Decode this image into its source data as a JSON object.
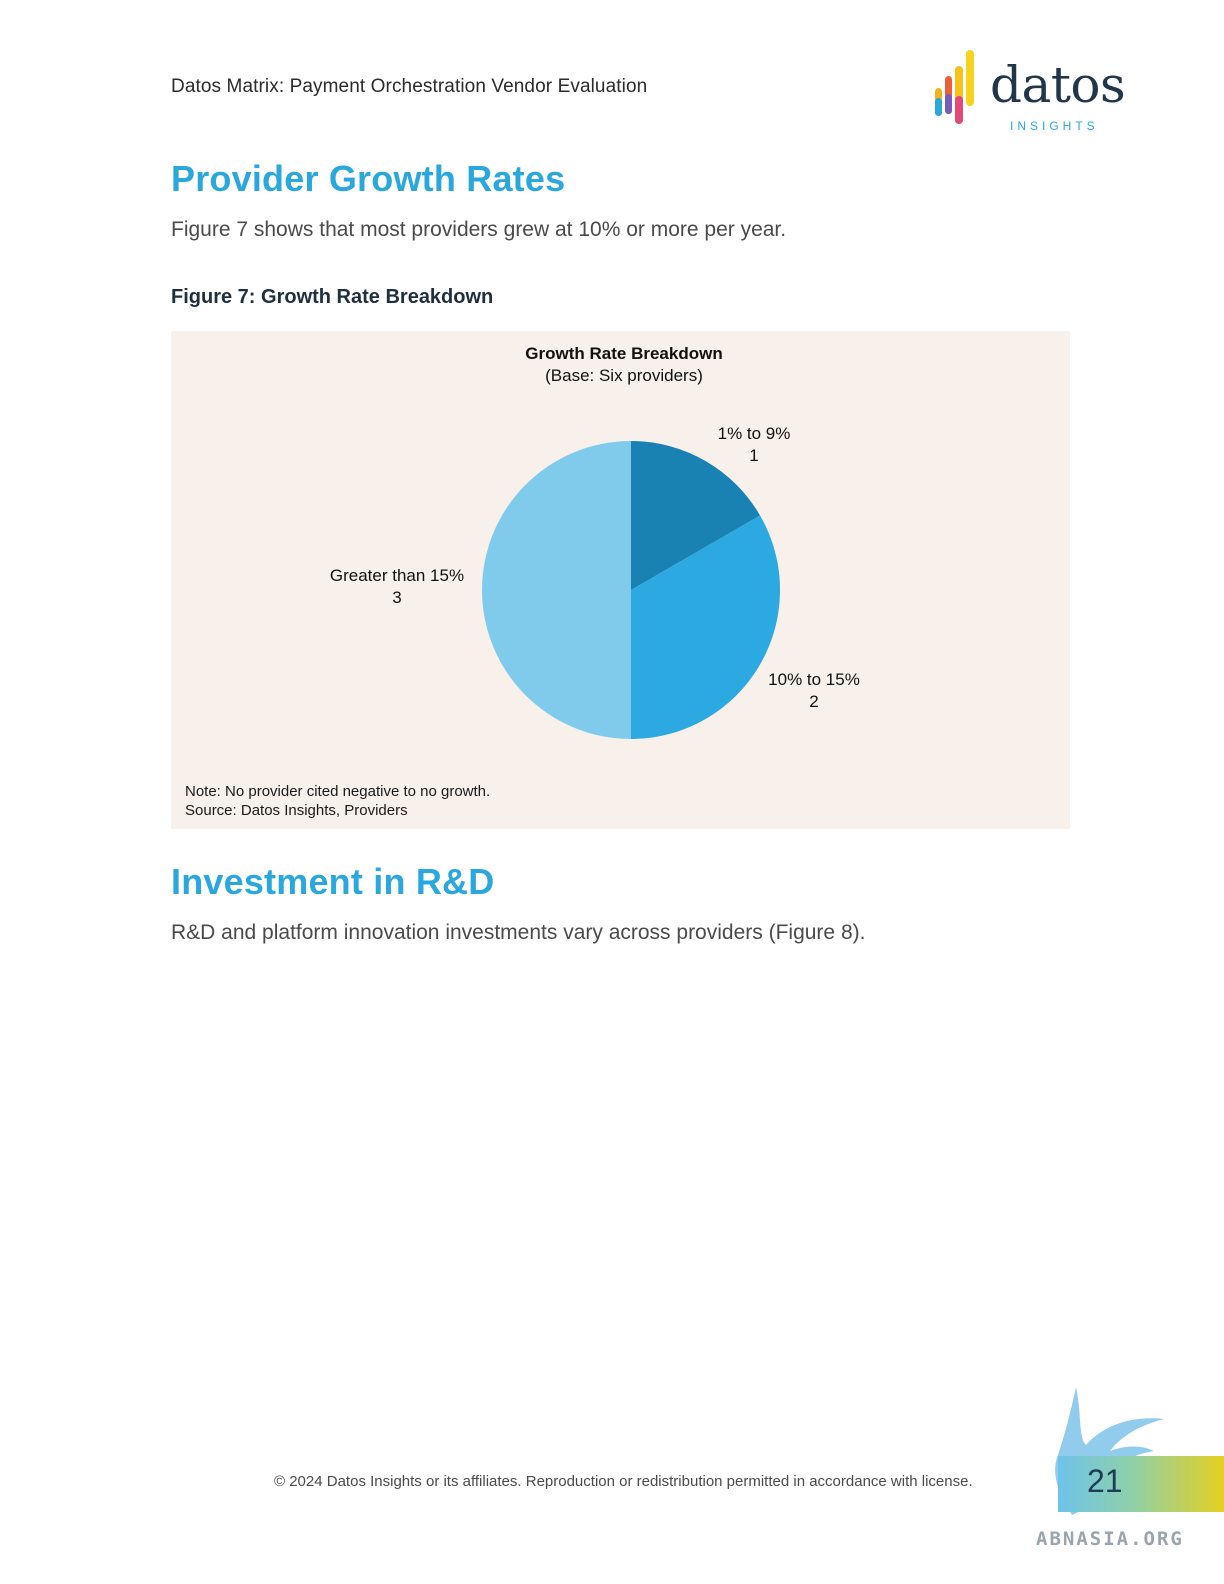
{
  "header": {
    "doc_title": "Datos Matrix: Payment Orchestration Vendor Evaluation",
    "logo_word": "datos",
    "logo_sub": "INSIGHTS"
  },
  "section1": {
    "heading": "Provider Growth Rates",
    "body": "Figure 7 shows that most providers grew at 10% or more per year.",
    "figure_caption": "Figure 7: Growth Rate Breakdown"
  },
  "chart_data": {
    "type": "pie",
    "title": "Growth Rate Breakdown",
    "subtitle": "(Base: Six providers)",
    "slices": [
      {
        "label": "1% to 9%",
        "value": 1,
        "color": "#1a82b2"
      },
      {
        "label": "10% to 15%",
        "value": 2,
        "color": "#2ba9e0"
      },
      {
        "label": "Greater than 15%",
        "value": 3,
        "color": "#80cbeb"
      }
    ],
    "note": "Note: No provider cited negative to no growth.",
    "source": "Source: Datos Insights, Providers"
  },
  "section2": {
    "heading": "Investment in R&D",
    "body": "R&D and platform innovation investments vary across providers (Figure 8)."
  },
  "footer": {
    "copyright": "© 2024 Datos Insights or its affiliates. Reproduction or redistribution permitted in accordance with license.",
    "page_number": "21",
    "watermark": "ABNASIA.ORG"
  }
}
